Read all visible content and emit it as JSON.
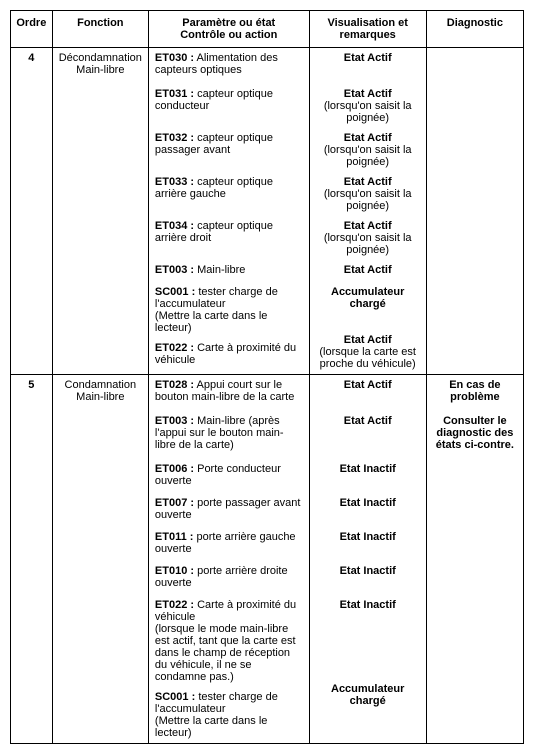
{
  "headers": {
    "ordre": "Ordre",
    "fonction": "Fonction",
    "param": "Paramètre ou état\nContrôle ou action",
    "visual": "Visualisation et remarques",
    "diag": "Diagnostic"
  },
  "rows": [
    {
      "ordre": "4",
      "fonction": "Décondamnation Main-libre",
      "params": [
        {
          "code": "ET030 :",
          "desc": " Alimentation des capteurs optiques"
        },
        {
          "code": "ET031 :",
          "desc": " capteur optique conducteur"
        },
        {
          "code": "ET032 :",
          "desc": " capteur optique passager avant"
        },
        {
          "code": "ET033 :",
          "desc": " capteur optique arrière gauche"
        },
        {
          "code": "ET034 :",
          "desc": " capteur optique arrière droit"
        },
        {
          "code": "ET003 :",
          "desc": " Main-libre"
        },
        {
          "code": "SC001 :",
          "desc": " tester charge de l'accumulateur",
          "note": "(Mettre la carte dans le lecteur)"
        },
        {
          "code": "ET022 :",
          "desc": " Carte à proximité du véhicule"
        }
      ],
      "visuals": [
        {
          "state": "Etat Actif"
        },
        {
          "state": "Etat Actif",
          "remark": "(lorsqu'on saisit la poignée)"
        },
        {
          "state": "Etat Actif",
          "remark": "(lorsqu'on saisit la poignée)"
        },
        {
          "state": "Etat Actif",
          "remark": "(lorsqu'on saisit la poignée)"
        },
        {
          "state": "Etat Actif",
          "remark": "(lorsqu'on saisit la poignée)"
        },
        {
          "state": "Etat Actif"
        },
        {
          "state": "Accumulateur chargé"
        },
        {
          "state": "Etat Actif",
          "remark": "(lorsque la carte est proche du véhicule)"
        }
      ],
      "diag": []
    },
    {
      "ordre": "5",
      "fonction": "Condamnation Main-libre",
      "params": [
        {
          "code": "ET028 :",
          "desc": " Appui court sur le bouton main-libre de la carte"
        },
        {
          "code": "ET003 :",
          "desc": " Main-libre (après l'appui sur le bouton main-libre de la carte)"
        },
        {
          "code": "ET006 :",
          "desc": " Porte conducteur ouverte"
        },
        {
          "code": "ET007 :",
          "desc": " porte passager avant ouverte"
        },
        {
          "code": "ET011 :",
          "desc": " porte arrière gauche ouverte"
        },
        {
          "code": "ET010 :",
          "desc": " porte arrière droite ouverte"
        },
        {
          "code": "ET022 :",
          "desc": " Carte à proximité du véhicule",
          "note": "(lorsque le mode main-libre est actif, tant que la carte est dans le champ de réception du véhicule, il ne se condamne pas.)"
        },
        {
          "code": "SC001 :",
          "desc": " tester charge de l'accumulateur",
          "note": "(Mettre la carte dans le lecteur)"
        }
      ],
      "visuals": [
        {
          "state": "Etat Actif"
        },
        {
          "state": "Etat Actif"
        },
        {
          "state": "Etat Inactif"
        },
        {
          "state": "Etat Inactif"
        },
        {
          "state": "Etat Inactif"
        },
        {
          "state": "Etat Inactif"
        },
        {
          "state": "Etat Inactif"
        },
        {
          "state": "Accumulateur chargé"
        }
      ],
      "diag": [
        "En cas de problème",
        "Consulter le diagnostic des états ci-contre."
      ]
    }
  ],
  "heights": {
    "r0": {
      "p": [
        28,
        36,
        36,
        36,
        36,
        14,
        40,
        28
      ],
      "v": [
        28,
        36,
        36,
        36,
        36,
        14,
        40,
        28
      ]
    },
    "r1": {
      "p": [
        28,
        40,
        26,
        26,
        26,
        26,
        76,
        40
      ],
      "v": [
        28,
        40,
        26,
        26,
        26,
        26,
        76,
        40
      ]
    }
  }
}
